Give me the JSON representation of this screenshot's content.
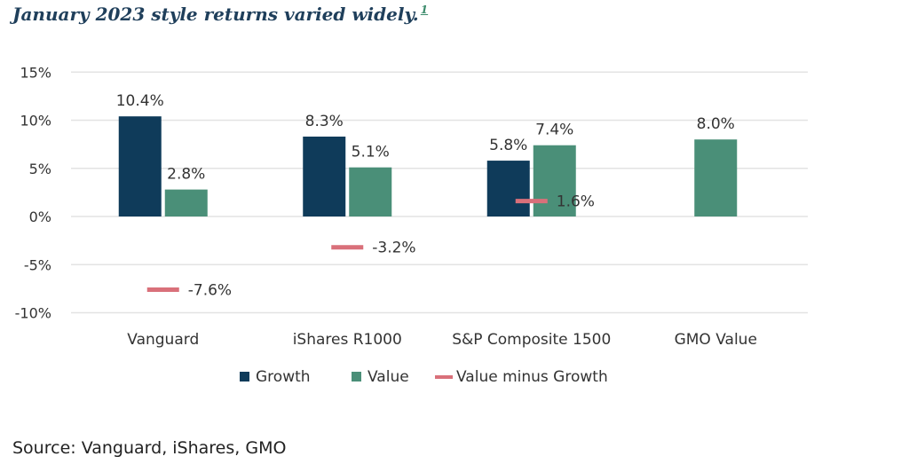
{
  "header": {
    "title": "January 2023 style returns varied widely.",
    "footnote": "1"
  },
  "source": "Source: Vanguard, iShares, GMO",
  "colors": {
    "growth": "#0f3b5a",
    "value": "#4a8f78",
    "diff": "#d9707a",
    "grid": "#e3e3e3",
    "text": "#333333"
  },
  "chart_data": {
    "type": "bar",
    "categories": [
      "Vanguard",
      "iShares R1000",
      "S&P Composite 1500",
      "GMO Value"
    ],
    "series": [
      {
        "name": "Growth",
        "values": [
          10.4,
          8.3,
          5.8,
          null
        ],
        "labels": [
          "10.4%",
          "8.3%",
          "5.8%",
          ""
        ]
      },
      {
        "name": "Value",
        "values": [
          2.8,
          5.1,
          7.4,
          8.0
        ],
        "labels": [
          "2.8%",
          "5.1%",
          "7.4%",
          "8.0%"
        ]
      },
      {
        "name": "Value minus Growth",
        "values": [
          -7.6,
          -3.2,
          1.6,
          null
        ],
        "labels": [
          "-7.6%",
          "-3.2%",
          "1.6%",
          ""
        ],
        "marker": "dash"
      }
    ],
    "ylim": [
      -10,
      15
    ],
    "yticks": [
      15,
      10,
      5,
      0,
      -5,
      -10
    ],
    "ytick_labels": [
      "15%",
      "10%",
      "5%",
      "0%",
      "-5%",
      "-10%"
    ],
    "grid": true,
    "legend": "bottom"
  }
}
